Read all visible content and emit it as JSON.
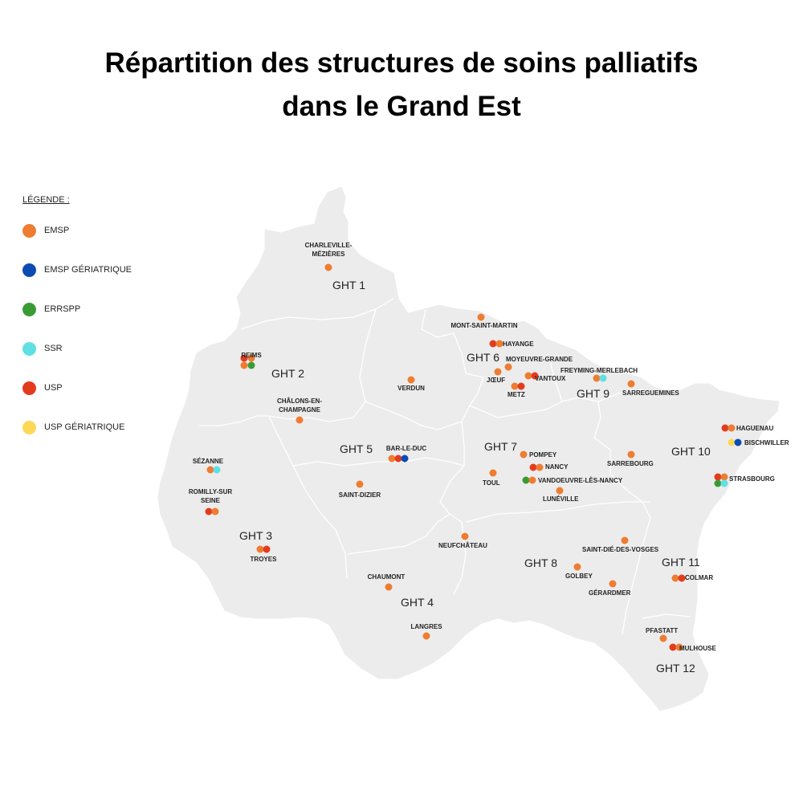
{
  "title": {
    "line1": "Répartition des structures de soins palliatifs",
    "line2": "dans le Grand Est"
  },
  "legend": {
    "title": "LÉGENDE :",
    "items": [
      {
        "key": "EMSP",
        "label": "EMSP",
        "color": "#EE7D31"
      },
      {
        "key": "EMSP_GER",
        "label": "EMSP GÉRIATRIQUE",
        "color": "#0B4BB3"
      },
      {
        "key": "ERRSPP",
        "label": "ERRSPP",
        "color": "#3A9B35"
      },
      {
        "key": "SSR",
        "label": "SSR",
        "color": "#5FE0E3"
      },
      {
        "key": "USP",
        "label": "USP",
        "color": "#E33B1E"
      },
      {
        "key": "USP_GER",
        "label": "USP GÉRIATRIQUE",
        "color": "#FDD756"
      }
    ]
  },
  "ght_labels": [
    "GHT 1",
    "GHT 2",
    "GHT 3",
    "GHT 4",
    "GHT 5",
    "GHT 6",
    "GHT 7",
    "GHT 8",
    "GHT 9",
    "GHT 10",
    "GHT 11",
    "GHT 12"
  ],
  "places": [
    {
      "name": "CHARLEVILLE-\nMÉZIÈRES",
      "structures": [
        "EMSP"
      ]
    },
    {
      "name": "REIMS",
      "structures": [
        "USP",
        "EMSP",
        "EMSP",
        "ERRSPP"
      ]
    },
    {
      "name": "CHÂLONS-EN-\nCHAMPAGNE",
      "structures": [
        "EMSP"
      ]
    },
    {
      "name": "SÉZANNE",
      "structures": [
        "EMSP",
        "SSR"
      ]
    },
    {
      "name": "ROMILLY-SUR\nSEINE",
      "structures": [
        "USP",
        "EMSP"
      ]
    },
    {
      "name": "TROYES",
      "structures": [
        "EMSP",
        "USP"
      ]
    },
    {
      "name": "VERDUN",
      "structures": [
        "EMSP"
      ]
    },
    {
      "name": "BAR-LE-DUC",
      "structures": [
        "EMSP",
        "USP",
        "EMSP_GER"
      ]
    },
    {
      "name": "SAINT-DIZIER",
      "structures": [
        "EMSP"
      ]
    },
    {
      "name": "CHAUMONT",
      "structures": [
        "EMSP"
      ]
    },
    {
      "name": "LANGRES",
      "structures": [
        "EMSP"
      ]
    },
    {
      "name": "MONT-SAINT-MARTIN",
      "structures": [
        "EMSP"
      ]
    },
    {
      "name": "HAYANGE",
      "structures": [
        "USP",
        "EMSP"
      ]
    },
    {
      "name": "MOYEUVRE-GRANDE",
      "structures": [
        "EMSP"
      ]
    },
    {
      "name": "JŒUF",
      "structures": [
        "EMSP"
      ]
    },
    {
      "name": "VANTOUX",
      "structures": [
        "EMSP",
        "USP"
      ]
    },
    {
      "name": "METZ",
      "structures": [
        "EMSP",
        "USP"
      ]
    },
    {
      "name": "FREYMING-MERLEBACH",
      "structures": [
        "EMSP",
        "SSR"
      ]
    },
    {
      "name": "SARREGUEMINES",
      "structures": [
        "EMSP"
      ]
    },
    {
      "name": "POMPEY",
      "structures": [
        "EMSP"
      ]
    },
    {
      "name": "NANCY",
      "structures": [
        "USP",
        "EMSP"
      ]
    },
    {
      "name": "TOUL",
      "structures": [
        "EMSP"
      ]
    },
    {
      "name": "VANDOEUVRE-LÈS-NANCY",
      "structures": [
        "ERRSPP",
        "EMSP"
      ]
    },
    {
      "name": "LUNÉVILLE",
      "structures": [
        "EMSP"
      ]
    },
    {
      "name": "SARREBOURG",
      "structures": [
        "EMSP"
      ]
    },
    {
      "name": "NEUFCHÂTEAU",
      "structures": [
        "EMSP"
      ]
    },
    {
      "name": "SAINT-DIÉ-DES-VOSGES",
      "structures": [
        "EMSP"
      ]
    },
    {
      "name": "GOLBEY",
      "structures": [
        "EMSP"
      ]
    },
    {
      "name": "GÉRARDMER",
      "structures": [
        "EMSP"
      ]
    },
    {
      "name": "HAGUENAU",
      "structures": [
        "USP",
        "EMSP"
      ]
    },
    {
      "name": "BISCHWILLER",
      "structures": [
        "USP_GER",
        "EMSP_GER"
      ]
    },
    {
      "name": "STRASBOURG",
      "structures": [
        "USP",
        "EMSP",
        "ERRSPP",
        "SSR"
      ]
    },
    {
      "name": "COLMAR",
      "structures": [
        "EMSP",
        "USP"
      ]
    },
    {
      "name": "PFASTATT",
      "structures": [
        "EMSP"
      ]
    },
    {
      "name": "MULHOUSE",
      "structures": [
        "USP",
        "EMSP"
      ]
    }
  ]
}
